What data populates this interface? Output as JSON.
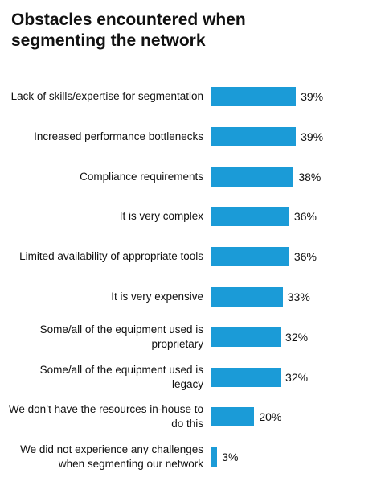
{
  "chart_data": {
    "type": "bar",
    "orientation": "horizontal",
    "title": "Obstacles encountered when segmenting the network",
    "categories": [
      "Lack of skills/expertise for segmentation",
      "Increased performance bottlenecks",
      "Compliance requirements",
      "It is very complex",
      "Limited availability of appropriate tools",
      "It is very expensive",
      "Some/all of the equipment used is proprietary",
      "Some/all of the equipment used is legacy",
      "We don’t have the resources in-house to do this",
      "We did not experience any challenges when segmenting our network"
    ],
    "values": [
      39,
      39,
      38,
      36,
      36,
      33,
      32,
      32,
      20,
      3
    ],
    "value_labels": [
      "39%",
      "39%",
      "38%",
      "36%",
      "36%",
      "33%",
      "32%",
      "32%",
      "20%",
      "3%"
    ],
    "color": "#1b9bd7"
  }
}
